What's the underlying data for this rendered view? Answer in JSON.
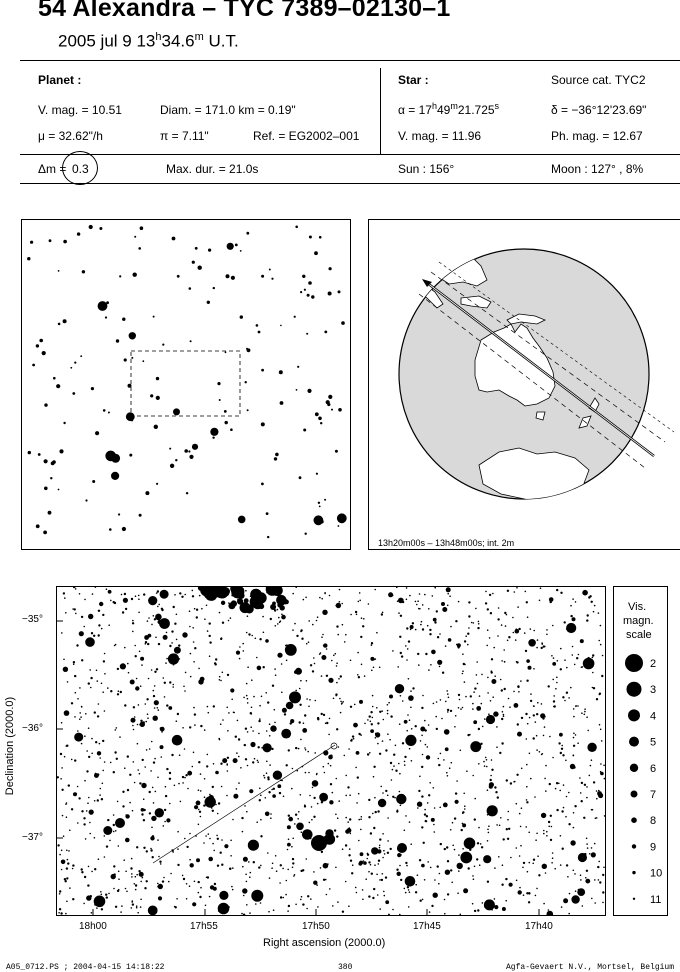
{
  "header": {
    "title": "54 Alexandra  –  TYC 7389–02130–1",
    "date_prefix": "2005 jul  9  13",
    "date_h": "h",
    "date_mid": "34.6",
    "date_m": "m",
    "date_suffix": " U.T."
  },
  "planet": {
    "heading": "Planet :",
    "vmag": "V. mag. = 10.51",
    "diam": "Diam. = 171.0 km = 0.19\"",
    "mu": "μ =  32.62\"/h",
    "pi": "π =  7.11\"",
    "ref": "Ref. = EG2002–001"
  },
  "star": {
    "heading": "Star :",
    "source": "Source cat.  TYC2",
    "alpha_prefix": "α = 17",
    "alpha_h": "h",
    "alpha_mid": "49",
    "alpha_m": "m",
    "alpha_sec": "21.725",
    "alpha_s": "s",
    "delta": "δ = −36°12'23.69\"",
    "vmag": "V. mag. = 11.96",
    "phmag": "Ph. mag. = 12.67"
  },
  "summary": {
    "dm_label": "Δm =",
    "dm_value": "0.3",
    "maxdur": "Max. dur. = 21.0s",
    "sun": "Sun : 156°",
    "moon": "Moon : 127° ,  8%"
  },
  "globe_caption": "13h20m00s – 13h48m00s; int.  2m",
  "chart_data": {
    "type": "scatter",
    "xlabel": "Right ascension (2000.0)",
    "ylabel": "Declination (2000.0)",
    "x_ticks": [
      "18h00",
      "17h55",
      "17h50",
      "17h45",
      "17h40"
    ],
    "y_ticks": [
      "−35°",
      "−36°",
      "−37°"
    ],
    "ylim": [
      -37.25,
      -34.8
    ],
    "path": {
      "start": [
        "17h52.3m",
        "-36.0"
      ],
      "end": [
        "17h57.3m",
        "-37.2"
      ]
    }
  },
  "scale": {
    "title1": "Vis.",
    "title2": "magn.",
    "title3": "scale",
    "items": [
      "2",
      "3",
      "4",
      "5",
      "6",
      "7",
      "8",
      "9",
      "10",
      "11"
    ]
  },
  "footer": {
    "left": "A05_0712.PS ; 2004-04-15 14:18:22",
    "center": "380",
    "right": "Agfa-Gevaert N.V., Mortsel, Belgium"
  },
  "colors": {
    "ink": "#000000",
    "globe_fill": "#d9d9d9",
    "paper": "#ffffff"
  }
}
